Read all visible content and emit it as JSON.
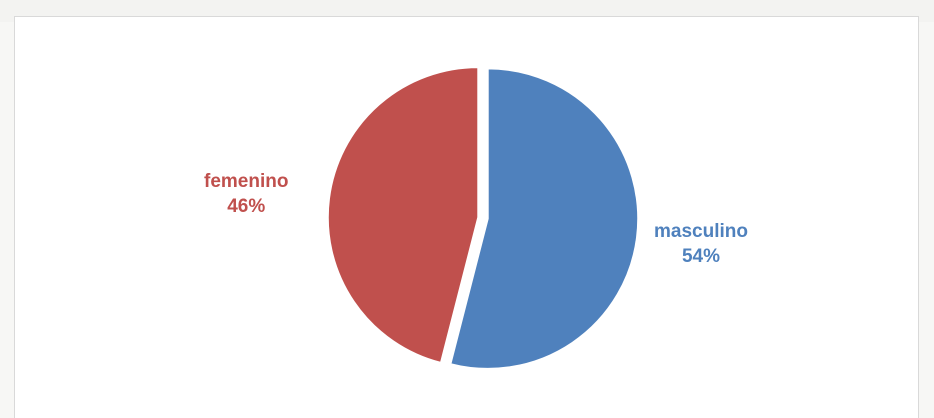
{
  "chart_data": {
    "type": "pie",
    "slices": [
      {
        "category": "masculino",
        "percent_label": "54%",
        "value": 54,
        "color": "#4f81bd"
      },
      {
        "category": "femenino",
        "percent_label": "46%",
        "value": 46,
        "color": "#c0504d"
      }
    ],
    "exploded": true,
    "legend": "none"
  }
}
